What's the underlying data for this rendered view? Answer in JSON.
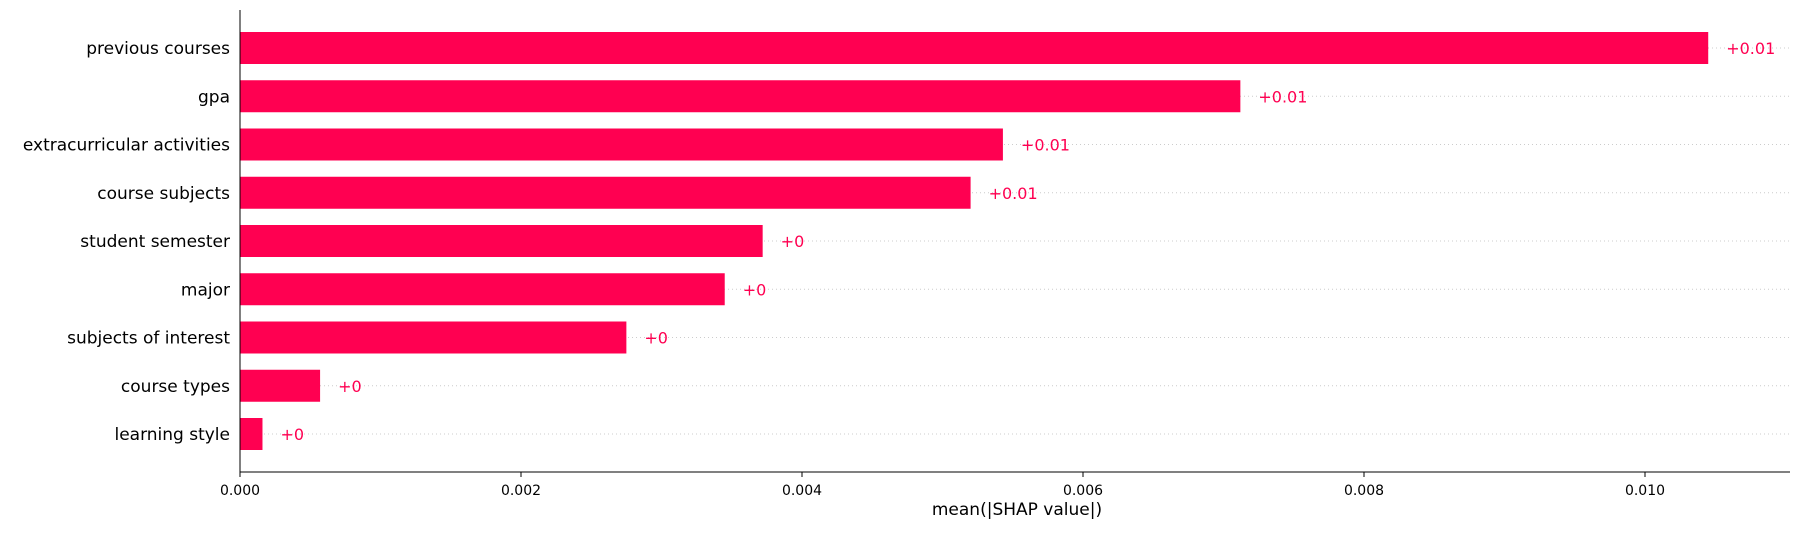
{
  "chart_data": {
    "type": "bar",
    "orientation": "horizontal",
    "categories": [
      "previous courses",
      "gpa",
      "extracurricular activities",
      "course subjects",
      "student semester",
      "major",
      "subjects of interest",
      "course types",
      "learning style"
    ],
    "values": [
      0.01045,
      0.00712,
      0.00543,
      0.0052,
      0.00372,
      0.00345,
      0.00275,
      0.00057,
      0.00016
    ],
    "data_labels": [
      "+0.01",
      "+0.01",
      "+0.01",
      "+0.01",
      "+0",
      "+0",
      "+0",
      "+0",
      "+0"
    ],
    "xlabel": "mean(|SHAP value|)",
    "ylabel": "",
    "title": "",
    "xlim": [
      0,
      0.0115
    ],
    "x_ticks": [
      0,
      0.002,
      0.004,
      0.006,
      0.008,
      0.01
    ],
    "x_tick_labels": [
      "0.000",
      "0.002",
      "0.004",
      "0.006",
      "0.008",
      "0.010"
    ],
    "bar_color": "#ff0051",
    "label_color": "#ff0051",
    "grid": "horizontal dotted guide lines per row",
    "legend": "none"
  }
}
